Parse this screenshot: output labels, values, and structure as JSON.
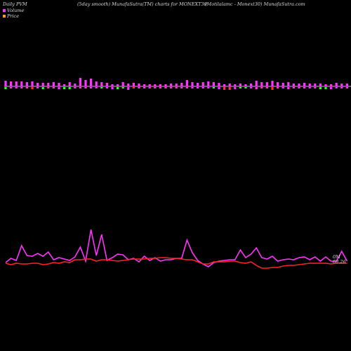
{
  "header": {
    "left": "Daily PVM",
    "center": "(5day smooth) MunafaSutra(TM) charts for MONEXT30",
    "right": "(Motilalamc - Monext30) MunafaSutra.com"
  },
  "legend": [
    {
      "label": "Volume",
      "color": "#ff33ff"
    },
    {
      "label": "Price",
      "color": "#ff9933"
    }
  ],
  "colors": {
    "volume_up": "#ff33ff",
    "volume_down": "#33ff33",
    "volume_red": "#ff3333",
    "pvm_line": "#ff33ff",
    "price_line": "#ff2222",
    "baseline": "#ffffff"
  },
  "chart_data": {
    "type": "bar+line",
    "title": "(5day smooth) MunafaSutra(TM) charts for MONEXT30",
    "volume_bars": {
      "up_heights": [
        8,
        7,
        7,
        7,
        6,
        7,
        5,
        5,
        5,
        6,
        5,
        3,
        6,
        4,
        12,
        9,
        11,
        7,
        6,
        5,
        3,
        3,
        6,
        4,
        5,
        4,
        3,
        3,
        3,
        3,
        3,
        4,
        4,
        5,
        9,
        6,
        5,
        6,
        7,
        6,
        5,
        3,
        4,
        3,
        4,
        3,
        4,
        8,
        6,
        6,
        8,
        6,
        5,
        6,
        4,
        4,
        5,
        4,
        4,
        4,
        3,
        3,
        5,
        4,
        4
      ],
      "down_heights": [
        3,
        2,
        2,
        2,
        2,
        3,
        2,
        3,
        2,
        2,
        3,
        3,
        3,
        2,
        2,
        2,
        2,
        2,
        2,
        2,
        3,
        3,
        2,
        4,
        2,
        2,
        2,
        2,
        2,
        2,
        2,
        2,
        2,
        2,
        2,
        2,
        2,
        2,
        2,
        2,
        3,
        4,
        4,
        3,
        2,
        2,
        2,
        3,
        2,
        2,
        4,
        2,
        2,
        3,
        2,
        2,
        2,
        2,
        2,
        3,
        3,
        3,
        2,
        2,
        2
      ],
      "down_colors": [
        "green",
        "pink",
        "pink",
        "pink",
        "pink",
        "red",
        "pink",
        "green",
        "pink",
        "pink",
        "pink",
        "green",
        "green",
        "pink",
        "pink",
        "pink",
        "pink",
        "pink",
        "green",
        "pink",
        "pink",
        "green",
        "green",
        "pink",
        "red",
        "pink",
        "pink",
        "pink",
        "pink",
        "pink",
        "pink",
        "pink",
        "pink",
        "pink",
        "pink",
        "pink",
        "pink",
        "pink",
        "pink",
        "green",
        "pink",
        "red",
        "red",
        "pink",
        "green",
        "green",
        "pink",
        "pink",
        "pink",
        "pink",
        "red",
        "pink",
        "pink",
        "pink",
        "pink",
        "pink",
        "pink",
        "pink",
        "pink",
        "green",
        "green",
        "pink",
        "pink",
        "pink",
        "pink"
      ]
    },
    "pvm_series": [
      374,
      368,
      371,
      350,
      364,
      365,
      361,
      365,
      359,
      370,
      367,
      369,
      371,
      366,
      352,
      372,
      327,
      364,
      334,
      371,
      367,
      362,
      363,
      370,
      368,
      373,
      365,
      371,
      367,
      372,
      370,
      370,
      368,
      368,
      342,
      360,
      371,
      376,
      380,
      374,
      372,
      371,
      370,
      370,
      356,
      367,
      362,
      353,
      367,
      369,
      365,
      372,
      370,
      369,
      370,
      367,
      366,
      370,
      366,
      372,
      366,
      372,
      372,
      358,
      372
    ],
    "price_series": [
      375,
      377,
      375,
      376,
      376,
      375,
      375,
      377,
      376,
      374,
      375,
      373,
      374,
      370,
      370,
      369,
      369,
      372,
      370,
      370,
      371,
      372,
      371,
      370,
      369,
      369,
      369,
      368,
      368,
      367,
      367,
      368,
      368,
      369,
      370,
      370,
      373,
      376,
      376,
      373,
      373,
      373,
      372,
      372,
      374,
      375,
      373,
      378,
      382,
      382,
      381,
      381,
      379,
      378,
      378,
      377,
      376,
      375,
      375,
      375,
      375,
      376,
      375,
      375,
      375
    ],
    "annotations": [
      "0M",
      "68.26"
    ],
    "baseline_value": 0
  }
}
